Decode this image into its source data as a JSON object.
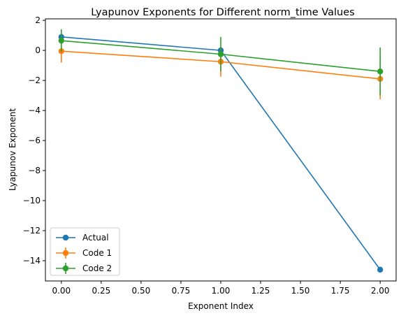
{
  "chart_data": {
    "type": "line",
    "title": "Lyapunov Exponents for Different norm_time Values",
    "xlabel": "Exponent Index",
    "ylabel": "Lyapunov Exponent",
    "xlim": [
      -0.1,
      2.1
    ],
    "ylim": [
      -15.35,
      2.1
    ],
    "xticks": [
      0.0,
      0.25,
      0.5,
      0.75,
      1.0,
      1.25,
      1.5,
      1.75,
      2.0
    ],
    "xtick_labels": [
      "0.00",
      "0.25",
      "0.50",
      "0.75",
      "1.00",
      "1.25",
      "1.50",
      "1.75",
      "2.00"
    ],
    "yticks": [
      2,
      0,
      -2,
      -4,
      -6,
      -8,
      -10,
      -12,
      -14
    ],
    "ytick_labels": [
      "2",
      "0",
      "−2",
      "−4",
      "−6",
      "−8",
      "−10",
      "−12",
      "−14"
    ],
    "grid": false,
    "legend_position": "lower-left",
    "x": [
      0,
      1,
      2
    ],
    "series": [
      {
        "name": "Actual",
        "color": "#1f77b4",
        "values": [
          0.9,
          0.0,
          -14.6
        ],
        "errors": null
      },
      {
        "name": "Code 1",
        "color": "#ff7f0e",
        "values": [
          -0.05,
          -0.75,
          -1.9
        ],
        "errors": [
          0.75,
          1.0,
          1.35
        ]
      },
      {
        "name": "Code 2",
        "color": "#2ca02c",
        "values": [
          0.65,
          -0.25,
          -1.4
        ],
        "errors": [
          0.75,
          1.15,
          1.6
        ]
      }
    ]
  }
}
